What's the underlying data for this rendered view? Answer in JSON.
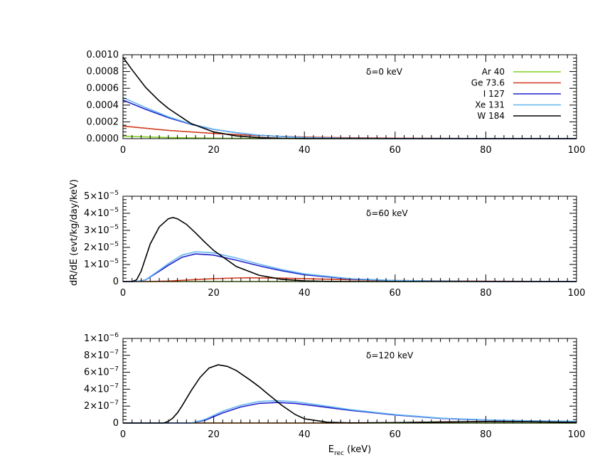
{
  "chart_data": [
    {
      "type": "line",
      "annotation": "δ=0 keV",
      "xlim": [
        0,
        100
      ],
      "ylim": [
        0,
        0.001
      ],
      "x_ticks": [
        0,
        20,
        40,
        60,
        80,
        100
      ],
      "x_tick_labels": [
        "0",
        "20",
        "40",
        "60",
        "80",
        "100"
      ],
      "y_ticks": [
        0,
        0.0002,
        0.0004,
        0.0006,
        0.0008,
        0.001
      ],
      "y_tick_labels": [
        "0.0000",
        "0.0002",
        "0.0004",
        "0.0006",
        "0.0008",
        "0.0010"
      ],
      "series": [
        {
          "name": "Ar 40",
          "color": "#7fd21e",
          "x": [
            0,
            10,
            20,
            30,
            40,
            60,
            80,
            100
          ],
          "y": [
            3e-05,
            1.2e-05,
            5e-06,
            2e-06,
            1e-06,
            0,
            0,
            0
          ]
        },
        {
          "name": "Ge 73.6",
          "color": "#d23c1e",
          "x": [
            0,
            10,
            20,
            30,
            40,
            50,
            60,
            80,
            100
          ],
          "y": [
            0.00015,
            9.8e-05,
            6.2e-05,
            3.6e-05,
            1.9e-05,
            1e-05,
            5e-06,
            1e-06,
            0
          ]
        },
        {
          "name": "I 127",
          "color": "#1e1ecd",
          "x": [
            0,
            5,
            10,
            15,
            20,
            25,
            30,
            40,
            50,
            60,
            80,
            100
          ],
          "y": [
            0.00046,
            0.00035,
            0.00025,
            0.00017,
            0.00011,
            7e-05,
            4e-05,
            1.2e-05,
            4e-06,
            1e-06,
            0,
            0
          ]
        },
        {
          "name": "Xe 131",
          "color": "#64b4f0",
          "x": [
            0,
            5,
            10,
            15,
            20,
            25,
            30,
            40,
            50,
            60,
            80,
            100
          ],
          "y": [
            0.00049,
            0.00037,
            0.00026,
            0.000175,
            0.000112,
            7e-05,
            4.1e-05,
            1.2e-05,
            3e-06,
            1e-06,
            0,
            0
          ]
        },
        {
          "name": "W 184",
          "color": "#000000",
          "x": [
            0,
            2,
            5,
            8,
            10,
            15,
            20,
            25,
            30,
            35,
            40,
            50,
            60,
            80,
            100
          ],
          "y": [
            0.00097,
            0.00082,
            0.00061,
            0.00045,
            0.00036,
            0.00018,
            8e-05,
            3.2e-05,
            1.2e-05,
            4e-06,
            1e-06,
            0,
            0,
            0,
            0
          ]
        }
      ]
    },
    {
      "type": "line",
      "annotation": "δ=60 keV",
      "xlim": [
        0,
        100
      ],
      "ylim": [
        0,
        5e-05
      ],
      "x_ticks": [
        0,
        20,
        40,
        60,
        80,
        100
      ],
      "x_tick_labels": [
        "0",
        "20",
        "40",
        "60",
        "80",
        "100"
      ],
      "y_ticks": [
        0,
        1e-05,
        2e-05,
        3e-05,
        4e-05,
        5e-05
      ],
      "y_tick_labels": [
        {
          "mantissa": "0",
          "exp": ""
        },
        {
          "mantissa": "1×10",
          "exp": "−5"
        },
        {
          "mantissa": "2×10",
          "exp": "−5"
        },
        {
          "mantissa": "3×10",
          "exp": "−5"
        },
        {
          "mantissa": "4×10",
          "exp": "−5"
        },
        {
          "mantissa": "5×10",
          "exp": "−5"
        }
      ],
      "series": [
        {
          "name": "Ar 40",
          "color": "#7fd21e",
          "x": [
            0,
            100
          ],
          "y": [
            0,
            0
          ]
        },
        {
          "name": "Ge 73.6",
          "color": "#d23c1e",
          "x": [
            0,
            5,
            10,
            15,
            20,
            25,
            28,
            35,
            40,
            50,
            60,
            80,
            100
          ],
          "y": [
            0,
            0,
            3e-07,
            1e-06,
            1.7e-06,
            2.1e-06,
            2.2e-06,
            2e-06,
            1.7e-06,
            1.1e-06,
            6e-07,
            2e-07,
            0
          ]
        },
        {
          "name": "I 127",
          "color": "#1e1ecd",
          "x": [
            0,
            3,
            5,
            8,
            10,
            13,
            16,
            20,
            25,
            30,
            35,
            40,
            50,
            60,
            80,
            100
          ],
          "y": [
            0,
            0,
            1e-06,
            6e-06,
            9.5e-06,
            1.42e-05,
            1.62e-05,
            1.55e-05,
            1.25e-05,
            9.2e-06,
            6.3e-06,
            4e-06,
            1.5e-06,
            5e-07,
            0,
            0
          ]
        },
        {
          "name": "Xe 131",
          "color": "#64b4f0",
          "x": [
            0,
            3,
            5,
            8,
            10,
            13,
            16,
            20,
            25,
            30,
            35,
            40,
            50,
            60,
            80,
            100
          ],
          "y": [
            0,
            0,
            1.1e-06,
            6.6e-06,
            1.05e-05,
            1.55e-05,
            1.75e-05,
            1.68e-05,
            1.38e-05,
            1.02e-05,
            7e-06,
            4.5e-06,
            1.7e-06,
            6e-07,
            0,
            0
          ]
        },
        {
          "name": "W 184",
          "color": "#000000",
          "x": [
            0,
            2,
            3,
            4,
            5,
            6,
            8,
            10,
            11,
            12,
            14,
            16,
            18,
            20,
            25,
            30,
            35,
            40,
            45,
            50,
            60,
            80,
            100
          ],
          "y": [
            0,
            0,
            1e-06,
            6e-06,
            1.4e-05,
            2.2e-05,
            3.2e-05,
            3.68e-05,
            3.75e-05,
            3.68e-05,
            3.35e-05,
            2.85e-05,
            2.32e-05,
            1.82e-05,
            8.8e-06,
            3.7e-06,
            1.3e-06,
            4e-07,
            1e-07,
            0,
            0,
            0,
            0
          ]
        }
      ]
    },
    {
      "type": "line",
      "annotation": "δ=120 keV",
      "xlim": [
        0,
        100
      ],
      "ylim": [
        0,
        1e-06
      ],
      "x_ticks": [
        0,
        20,
        40,
        60,
        80,
        100
      ],
      "x_tick_labels": [
        "0",
        "20",
        "40",
        "60",
        "80",
        "100"
      ],
      "y_ticks": [
        0,
        2e-07,
        4e-07,
        6e-07,
        8e-07,
        1e-06
      ],
      "y_tick_labels": [
        {
          "mantissa": "0",
          "exp": ""
        },
        {
          "mantissa": "2×10",
          "exp": "−7"
        },
        {
          "mantissa": "4×10",
          "exp": "−7"
        },
        {
          "mantissa": "6×10",
          "exp": "−7"
        },
        {
          "mantissa": "8×10",
          "exp": "−7"
        },
        {
          "mantissa": "1×10",
          "exp": "−6"
        }
      ],
      "series": [
        {
          "name": "Ar 40",
          "color": "#7fd21e",
          "x": [
            0,
            100
          ],
          "y": [
            0,
            0
          ]
        },
        {
          "name": "Ge 73.6",
          "color": "#d23c1e",
          "x": [
            0,
            40,
            50,
            60,
            70,
            80,
            90,
            100
          ],
          "y": [
            0,
            0,
            0,
            3e-09,
            1.2e-08,
            1.8e-08,
            1.5e-08,
            8e-09
          ]
        },
        {
          "name": "I 127",
          "color": "#1e1ecd",
          "x": [
            0,
            15,
            18,
            22,
            26,
            30,
            34,
            38,
            42,
            50,
            60,
            70,
            80,
            90,
            100
          ],
          "y": [
            0,
            0,
            3e-08,
            1.2e-07,
            1.9e-07,
            2.32e-07,
            2.43e-07,
            2.32e-07,
            2.05e-07,
            1.5e-07,
            9.5e-08,
            5.5e-08,
            3.5e-08,
            2.5e-08,
            1.8e-08
          ]
        },
        {
          "name": "Xe 131",
          "color": "#64b4f0",
          "x": [
            0,
            15,
            18,
            22,
            26,
            30,
            34,
            38,
            42,
            50,
            60,
            70,
            80,
            90,
            100
          ],
          "y": [
            0,
            0,
            4e-08,
            1.4e-07,
            2.1e-07,
            2.55e-07,
            2.65e-07,
            2.52e-07,
            2.22e-07,
            1.6e-07,
            1e-07,
            5.8e-08,
            3.7e-08,
            2.6e-08,
            1.9e-08
          ]
        },
        {
          "name": "W 184",
          "color": "#000000",
          "x": [
            0,
            9,
            10,
            11,
            12,
            13,
            15,
            17,
            19,
            21,
            23,
            25,
            28,
            30,
            32,
            35,
            38,
            40,
            45,
            50,
            60,
            70,
            80,
            90,
            100
          ],
          "y": [
            0,
            0,
            2e-08,
            6e-08,
            1.2e-07,
            2e-07,
            3.8e-07,
            5.4e-07,
            6.5e-07,
            6.88e-07,
            6.7e-07,
            6.2e-07,
            5.1e-07,
            4.3e-07,
            3.4e-07,
            2.1e-07,
            1e-07,
            5e-08,
            1e-08,
            2e-09,
            5e-09,
            1.2e-08,
            1.8e-08,
            1.5e-08,
            8e-09
          ]
        }
      ]
    }
  ],
  "ylabel": "dR/dE (evt/kg/day/keV)",
  "xlabel_main": "E",
  "xlabel_sub": "rec",
  "xlabel_unit": " (keV)"
}
